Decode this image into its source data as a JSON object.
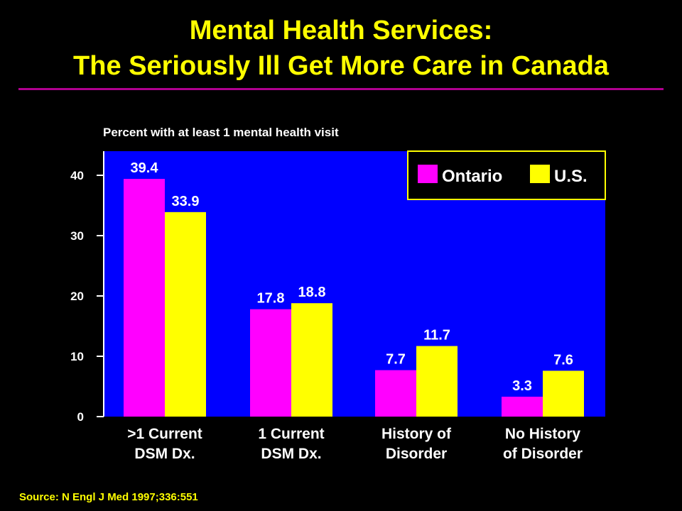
{
  "header": {
    "title_line1": "Mental Health Services:",
    "title_line2": "The Seriously Ill Get More Care in Canada"
  },
  "footer": {
    "source": "Source: N Engl J Med 1997;336:551"
  },
  "colors": {
    "background": "#000000",
    "plot_background": "#0000ff",
    "title": "#ffff00",
    "rule": "#b0008f",
    "ontario": "#ff00ff",
    "us": "#ffff00",
    "text": "#ffffff"
  },
  "chart_data": {
    "type": "bar",
    "title": "",
    "ylabel": "Percent with at least 1 mental health visit",
    "xlabel": "",
    "categories": [
      [
        ">1 Current",
        "DSM Dx."
      ],
      [
        "1 Current",
        "DSM Dx."
      ],
      [
        "History of",
        "Disorder"
      ],
      [
        "No History",
        "of Disorder"
      ]
    ],
    "series": [
      {
        "name": "Ontario",
        "values": [
          39.4,
          17.8,
          7.7,
          3.3
        ],
        "color": "#ff00ff",
        "labels": [
          "39.4",
          "17.8",
          "7.7",
          "3.3"
        ]
      },
      {
        "name": "U.S.",
        "values": [
          33.9,
          18.8,
          11.7,
          7.6
        ],
        "color": "#ffff00",
        "labels": [
          "33.9",
          "18.8",
          "11.7",
          "7.6"
        ]
      }
    ],
    "ylim": [
      0,
      44
    ],
    "yticks": [
      0,
      10,
      20,
      30,
      40
    ],
    "grid": false,
    "legend": "top-right"
  }
}
